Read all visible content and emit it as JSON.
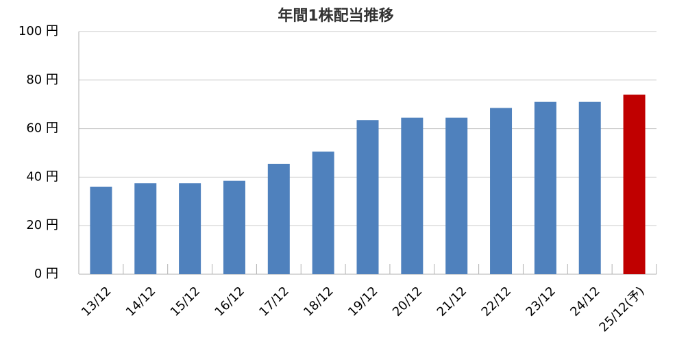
{
  "chart_data": {
    "type": "bar",
    "title": "年間1株配当推移",
    "categories": [
      "13/12",
      "14/12",
      "15/12",
      "16/12",
      "17/12",
      "18/12",
      "19/12",
      "20/12",
      "21/12",
      "22/12",
      "23/12",
      "24/12",
      "25/12(予)"
    ],
    "values": [
      36,
      37.5,
      37.5,
      38.5,
      45.5,
      50.5,
      63.5,
      64.5,
      64.5,
      68.5,
      71,
      71,
      74
    ],
    "colors": [
      "#4f81bd",
      "#4f81bd",
      "#4f81bd",
      "#4f81bd",
      "#4f81bd",
      "#4f81bd",
      "#4f81bd",
      "#4f81bd",
      "#4f81bd",
      "#4f81bd",
      "#4f81bd",
      "#4f81bd",
      "#c00000"
    ],
    "ylim": [
      0,
      100
    ],
    "yticks": [
      {
        "value": 0,
        "label": "0 円"
      },
      {
        "value": 20,
        "label": "20 円"
      },
      {
        "value": 40,
        "label": "40 円"
      },
      {
        "value": 60,
        "label": "60 円"
      },
      {
        "value": 80,
        "label": "80 円"
      },
      {
        "value": 100,
        "label": "100 円"
      }
    ],
    "grid": true
  }
}
